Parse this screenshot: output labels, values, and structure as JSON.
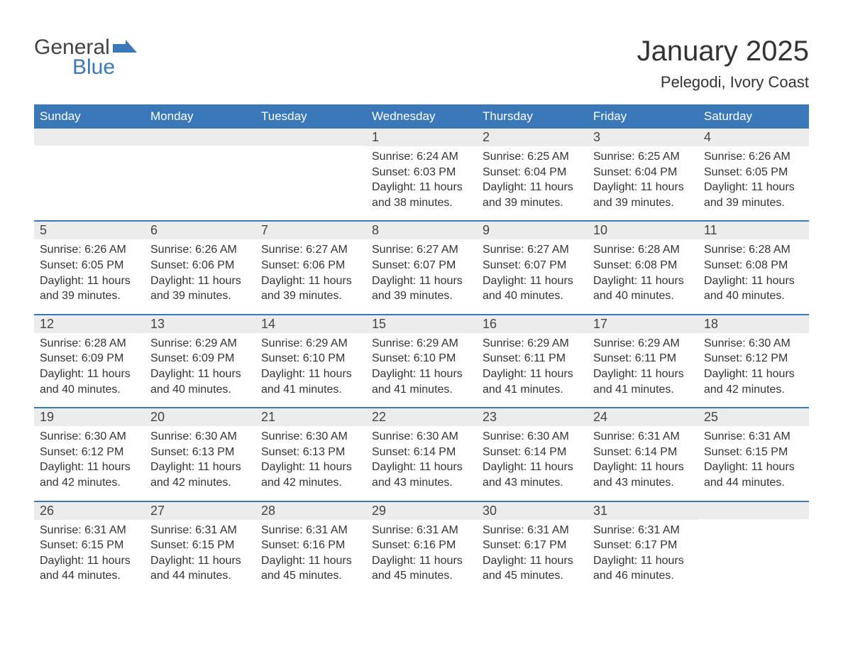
{
  "logo": {
    "word1": "General",
    "word2": "Blue",
    "accent_color": "#3a78b8",
    "neutral_color": "#444444"
  },
  "title": {
    "month": "January 2025",
    "location": "Pelegodi, Ivory Coast",
    "title_fontsize": 40,
    "location_fontsize": 22
  },
  "calendar": {
    "type": "table",
    "header_bg": "#3a78b8",
    "header_fg": "#ffffff",
    "row_accent": "#3a78b8",
    "daynum_bg": "#ececec",
    "body_bg": "#ffffff",
    "text_color": "#333333",
    "columns": [
      "Sunday",
      "Monday",
      "Tuesday",
      "Wednesday",
      "Thursday",
      "Friday",
      "Saturday"
    ],
    "weeks": [
      [
        {
          "day": "",
          "sunrise": "",
          "sunset": "",
          "daylight": ""
        },
        {
          "day": "",
          "sunrise": "",
          "sunset": "",
          "daylight": ""
        },
        {
          "day": "",
          "sunrise": "",
          "sunset": "",
          "daylight": ""
        },
        {
          "day": "1",
          "sunrise": "Sunrise: 6:24 AM",
          "sunset": "Sunset: 6:03 PM",
          "daylight": "Daylight: 11 hours and 38 minutes."
        },
        {
          "day": "2",
          "sunrise": "Sunrise: 6:25 AM",
          "sunset": "Sunset: 6:04 PM",
          "daylight": "Daylight: 11 hours and 39 minutes."
        },
        {
          "day": "3",
          "sunrise": "Sunrise: 6:25 AM",
          "sunset": "Sunset: 6:04 PM",
          "daylight": "Daylight: 11 hours and 39 minutes."
        },
        {
          "day": "4",
          "sunrise": "Sunrise: 6:26 AM",
          "sunset": "Sunset: 6:05 PM",
          "daylight": "Daylight: 11 hours and 39 minutes."
        }
      ],
      [
        {
          "day": "5",
          "sunrise": "Sunrise: 6:26 AM",
          "sunset": "Sunset: 6:05 PM",
          "daylight": "Daylight: 11 hours and 39 minutes."
        },
        {
          "day": "6",
          "sunrise": "Sunrise: 6:26 AM",
          "sunset": "Sunset: 6:06 PM",
          "daylight": "Daylight: 11 hours and 39 minutes."
        },
        {
          "day": "7",
          "sunrise": "Sunrise: 6:27 AM",
          "sunset": "Sunset: 6:06 PM",
          "daylight": "Daylight: 11 hours and 39 minutes."
        },
        {
          "day": "8",
          "sunrise": "Sunrise: 6:27 AM",
          "sunset": "Sunset: 6:07 PM",
          "daylight": "Daylight: 11 hours and 39 minutes."
        },
        {
          "day": "9",
          "sunrise": "Sunrise: 6:27 AM",
          "sunset": "Sunset: 6:07 PM",
          "daylight": "Daylight: 11 hours and 40 minutes."
        },
        {
          "day": "10",
          "sunrise": "Sunrise: 6:28 AM",
          "sunset": "Sunset: 6:08 PM",
          "daylight": "Daylight: 11 hours and 40 minutes."
        },
        {
          "day": "11",
          "sunrise": "Sunrise: 6:28 AM",
          "sunset": "Sunset: 6:08 PM",
          "daylight": "Daylight: 11 hours and 40 minutes."
        }
      ],
      [
        {
          "day": "12",
          "sunrise": "Sunrise: 6:28 AM",
          "sunset": "Sunset: 6:09 PM",
          "daylight": "Daylight: 11 hours and 40 minutes."
        },
        {
          "day": "13",
          "sunrise": "Sunrise: 6:29 AM",
          "sunset": "Sunset: 6:09 PM",
          "daylight": "Daylight: 11 hours and 40 minutes."
        },
        {
          "day": "14",
          "sunrise": "Sunrise: 6:29 AM",
          "sunset": "Sunset: 6:10 PM",
          "daylight": "Daylight: 11 hours and 41 minutes."
        },
        {
          "day": "15",
          "sunrise": "Sunrise: 6:29 AM",
          "sunset": "Sunset: 6:10 PM",
          "daylight": "Daylight: 11 hours and 41 minutes."
        },
        {
          "day": "16",
          "sunrise": "Sunrise: 6:29 AM",
          "sunset": "Sunset: 6:11 PM",
          "daylight": "Daylight: 11 hours and 41 minutes."
        },
        {
          "day": "17",
          "sunrise": "Sunrise: 6:29 AM",
          "sunset": "Sunset: 6:11 PM",
          "daylight": "Daylight: 11 hours and 41 minutes."
        },
        {
          "day": "18",
          "sunrise": "Sunrise: 6:30 AM",
          "sunset": "Sunset: 6:12 PM",
          "daylight": "Daylight: 11 hours and 42 minutes."
        }
      ],
      [
        {
          "day": "19",
          "sunrise": "Sunrise: 6:30 AM",
          "sunset": "Sunset: 6:12 PM",
          "daylight": "Daylight: 11 hours and 42 minutes."
        },
        {
          "day": "20",
          "sunrise": "Sunrise: 6:30 AM",
          "sunset": "Sunset: 6:13 PM",
          "daylight": "Daylight: 11 hours and 42 minutes."
        },
        {
          "day": "21",
          "sunrise": "Sunrise: 6:30 AM",
          "sunset": "Sunset: 6:13 PM",
          "daylight": "Daylight: 11 hours and 42 minutes."
        },
        {
          "day": "22",
          "sunrise": "Sunrise: 6:30 AM",
          "sunset": "Sunset: 6:14 PM",
          "daylight": "Daylight: 11 hours and 43 minutes."
        },
        {
          "day": "23",
          "sunrise": "Sunrise: 6:30 AM",
          "sunset": "Sunset: 6:14 PM",
          "daylight": "Daylight: 11 hours and 43 minutes."
        },
        {
          "day": "24",
          "sunrise": "Sunrise: 6:31 AM",
          "sunset": "Sunset: 6:14 PM",
          "daylight": "Daylight: 11 hours and 43 minutes."
        },
        {
          "day": "25",
          "sunrise": "Sunrise: 6:31 AM",
          "sunset": "Sunset: 6:15 PM",
          "daylight": "Daylight: 11 hours and 44 minutes."
        }
      ],
      [
        {
          "day": "26",
          "sunrise": "Sunrise: 6:31 AM",
          "sunset": "Sunset: 6:15 PM",
          "daylight": "Daylight: 11 hours and 44 minutes."
        },
        {
          "day": "27",
          "sunrise": "Sunrise: 6:31 AM",
          "sunset": "Sunset: 6:15 PM",
          "daylight": "Daylight: 11 hours and 44 minutes."
        },
        {
          "day": "28",
          "sunrise": "Sunrise: 6:31 AM",
          "sunset": "Sunset: 6:16 PM",
          "daylight": "Daylight: 11 hours and 45 minutes."
        },
        {
          "day": "29",
          "sunrise": "Sunrise: 6:31 AM",
          "sunset": "Sunset: 6:16 PM",
          "daylight": "Daylight: 11 hours and 45 minutes."
        },
        {
          "day": "30",
          "sunrise": "Sunrise: 6:31 AM",
          "sunset": "Sunset: 6:17 PM",
          "daylight": "Daylight: 11 hours and 45 minutes."
        },
        {
          "day": "31",
          "sunrise": "Sunrise: 6:31 AM",
          "sunset": "Sunset: 6:17 PM",
          "daylight": "Daylight: 11 hours and 46 minutes."
        },
        {
          "day": "",
          "sunrise": "",
          "sunset": "",
          "daylight": ""
        }
      ]
    ]
  }
}
